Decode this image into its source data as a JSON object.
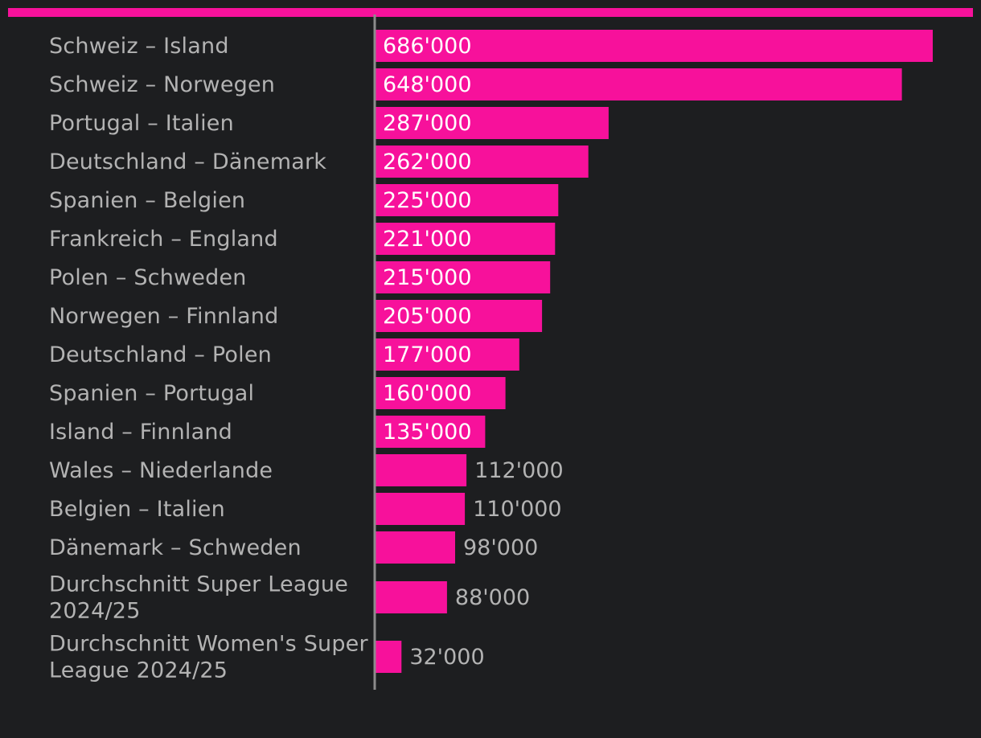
{
  "chart_data": {
    "type": "bar",
    "orientation": "horizontal",
    "title": "",
    "xlabel": "",
    "ylabel": "",
    "grid": false,
    "legend": "none",
    "xlim": [
      0,
      686000
    ],
    "bar_color": "#f7119b",
    "top_rule_color": "#f7119b",
    "axis_color": "#8c8c8c",
    "label_color": "#b3b3b3",
    "inside_value_color": "#ffffff",
    "background": "#1d1e20",
    "categories": [
      [
        "Schweiz – Island"
      ],
      [
        "Schweiz – Norwegen"
      ],
      [
        "Portugal – Italien"
      ],
      [
        "Deutschland – Dänemark"
      ],
      [
        "Spanien – Belgien"
      ],
      [
        "Frankreich – England"
      ],
      [
        "Polen – Schweden"
      ],
      [
        "Norwegen – Finnland"
      ],
      [
        "Deutschland – Polen"
      ],
      [
        "Spanien – Portugal"
      ],
      [
        "Island – Finnland"
      ],
      [
        "Wales – Niederlande"
      ],
      [
        "Belgien – Italien"
      ],
      [
        "Dänemark – Schweden"
      ],
      [
        "Durchschnitt Super League",
        "2024/25"
      ],
      [
        "Durchschnitt Women's Super",
        "League 2024/25"
      ]
    ],
    "values": [
      686000,
      648000,
      287000,
      262000,
      225000,
      221000,
      215000,
      205000,
      177000,
      160000,
      135000,
      112000,
      110000,
      98000,
      88000,
      32000
    ],
    "value_labels": [
      "686'000",
      "648'000",
      "287'000",
      "262'000",
      "225'000",
      "221'000",
      "215'000",
      "205'000",
      "177'000",
      "160'000",
      "135'000",
      "112'000",
      "110'000",
      "98'000",
      "88'000",
      "32'000"
    ]
  }
}
